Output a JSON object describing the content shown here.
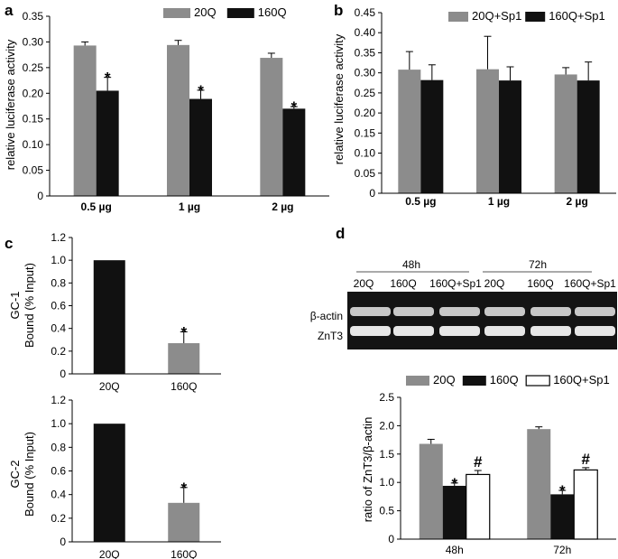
{
  "colors": {
    "gray": "#8c8c8c",
    "black": "#111111",
    "white": "#ffffff"
  },
  "chart_data": [
    {
      "panel": "a",
      "type": "bar",
      "categories": [
        "0.5 µg",
        "1 µg",
        "2 µg"
      ],
      "series": [
        {
          "name": "20Q",
          "color": "gray",
          "values": [
            0.293,
            0.294,
            0.269
          ],
          "errors": [
            0.007,
            0.009,
            0.009
          ],
          "marks": [
            "",
            "",
            ""
          ]
        },
        {
          "name": "160Q",
          "color": "black",
          "values": [
            0.205,
            0.189,
            0.17
          ],
          "errors": [
            0.026,
            0.017,
            0.004
          ],
          "marks": [
            "*",
            "*",
            "*"
          ]
        }
      ],
      "ylabel": "relative luciferase activity",
      "ylim": [
        0,
        0.35
      ],
      "yticks": [
        "0",
        "0.05",
        "0.10",
        "0.15",
        "0.20",
        "0.25",
        "0.30",
        "0.35"
      ],
      "legend": "top-right",
      "grid": false
    },
    {
      "panel": "b",
      "type": "bar",
      "categories": [
        "0.5 µg",
        "1 µg",
        "2 µg"
      ],
      "series": [
        {
          "name": "20Q+Sp1",
          "color": "gray",
          "values": [
            0.308,
            0.309,
            0.296
          ],
          "errors": [
            0.045,
            0.082,
            0.017
          ],
          "marks": [
            "",
            "",
            ""
          ]
        },
        {
          "name": "160Q+Sp1",
          "color": "black",
          "values": [
            0.282,
            0.281,
            0.281
          ],
          "errors": [
            0.038,
            0.034,
            0.046
          ],
          "marks": [
            "",
            "",
            ""
          ]
        }
      ],
      "ylabel": "relative luciferase activity",
      "ylim": [
        0,
        0.45
      ],
      "yticks": [
        "0",
        "0.05",
        "0.10",
        "0.15",
        "0.20",
        "0.25",
        "0.30",
        "0.35",
        "0.40",
        "0.45"
      ],
      "legend": "top-right",
      "grid": false
    },
    {
      "panel": "c",
      "type": "bar",
      "categories": [
        "20Q",
        "160Q"
      ],
      "values": [
        1.0,
        0.27
      ],
      "colors": [
        "black",
        "gray"
      ],
      "errors": [
        0,
        0.1
      ],
      "marks": [
        "",
        "*"
      ],
      "ylabel": [
        "GC-1",
        "Bound (% Input)"
      ],
      "ylim": [
        0,
        1.2
      ],
      "yticks": [
        "0",
        "0.2",
        "0.4",
        "0.6",
        "0.8",
        "1.0",
        "1.2"
      ],
      "grid": false
    },
    {
      "panel": "",
      "type": "bar",
      "categories": [
        "20Q",
        "160Q"
      ],
      "values": [
        1.0,
        0.33
      ],
      "colors": [
        "black",
        "gray"
      ],
      "errors": [
        0,
        0.13
      ],
      "marks": [
        "",
        "*"
      ],
      "ylabel": [
        "GC-2",
        "Bound (% Input)"
      ],
      "ylim": [
        0,
        1.2
      ],
      "yticks": [
        "0",
        "0.2",
        "0.4",
        "0.6",
        "0.8",
        "1.0",
        "1.2"
      ],
      "grid": false
    },
    {
      "panel": "d",
      "type": "bar",
      "categories": [
        "48h",
        "72h"
      ],
      "series": [
        {
          "name": "20Q",
          "color": "gray",
          "values": [
            1.68,
            1.94
          ],
          "errors": [
            0.08,
            0.04
          ],
          "marks": [
            "",
            ""
          ]
        },
        {
          "name": "160Q",
          "color": "black",
          "values": [
            0.94,
            0.79
          ],
          "errors": [
            0.05,
            0.07
          ],
          "marks": [
            "*",
            "*"
          ]
        },
        {
          "name": "160Q+Sp1",
          "color": "white",
          "values": [
            1.14,
            1.22
          ],
          "errors": [
            0.07,
            0.04
          ],
          "marks": [
            "#",
            "#"
          ]
        }
      ],
      "ylabel": "ratio of ZnT3/β-actin",
      "ylim": [
        0,
        2.5
      ],
      "yticks": [
        "0",
        "0.5",
        "1.0",
        "1.5",
        "2.0",
        "2.5"
      ],
      "legend": "top",
      "grid": false
    }
  ],
  "gel": {
    "groups": [
      "48h",
      "72h"
    ],
    "lanes": [
      "20Q",
      "160Q",
      "160Q+Sp1",
      "20Q",
      "160Q",
      "160Q+Sp1"
    ],
    "bands": [
      "β-actin",
      "ZnT3"
    ]
  }
}
